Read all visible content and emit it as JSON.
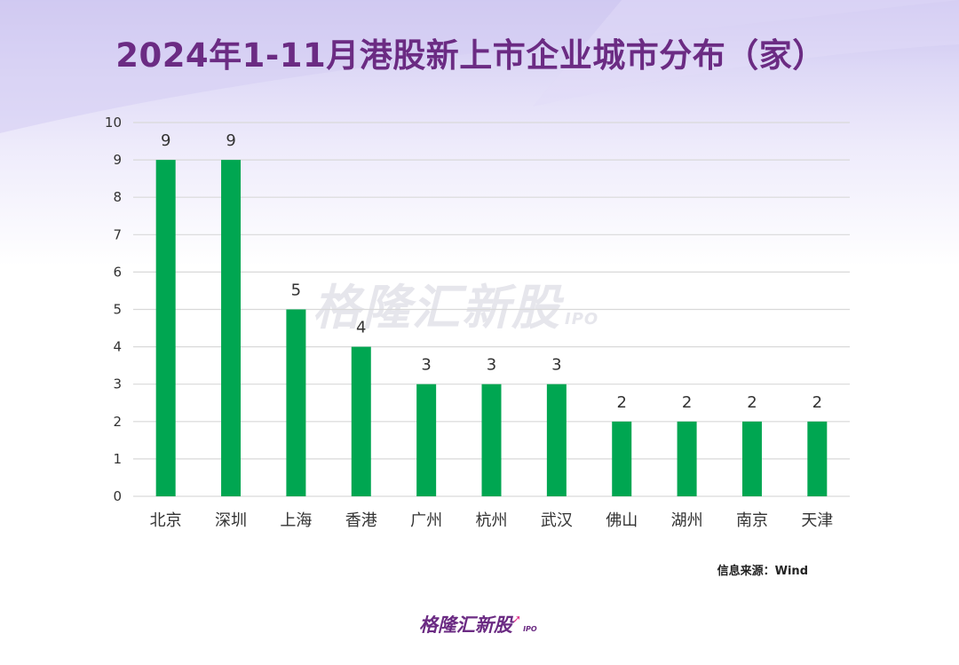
{
  "title": "2024年1-11月港股新上市企业城市分布（家）",
  "source": "信息来源：Wind",
  "watermark": {
    "text": "格隆汇新股",
    "suffix": "IPO"
  },
  "logo": {
    "text": "格隆汇新股",
    "suffix": "IPO"
  },
  "colors": {
    "bar": "#00a651",
    "title": "#6b2b83",
    "grid": "#d9d9d9"
  },
  "chart_data": {
    "type": "bar",
    "title": "2024年1-11月港股新上市企业城市分布（家）",
    "categories": [
      "北京",
      "深圳",
      "上海",
      "香港",
      "广州",
      "杭州",
      "武汉",
      "佛山",
      "湖州",
      "南京",
      "天津"
    ],
    "values": [
      9,
      9,
      5,
      4,
      3,
      3,
      3,
      2,
      2,
      2,
      2
    ],
    "yticks": [
      0,
      1,
      2,
      3,
      4,
      5,
      6,
      7,
      8,
      9,
      10
    ],
    "ylim": [
      0,
      10
    ],
    "xlabel": "",
    "ylabel": "",
    "grid": true,
    "data_labels": true
  }
}
